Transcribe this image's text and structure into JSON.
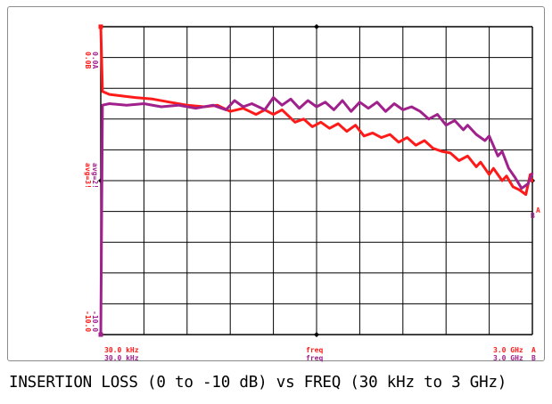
{
  "chart_data": {
    "type": "line",
    "title": "INSERTION LOSS (0 to -10 dB) vs FREQ (30 kHz to 3 GHz)",
    "xlabel": "freq",
    "ylabel_left": [
      "avg=3!",
      "avg=2!"
    ],
    "x_scale": "linear",
    "xlim_display": [
      0,
      1
    ],
    "ylim": [
      -10,
      0
    ],
    "grid": true,
    "x_tick_labels": {
      "start": [
        "30.0 kHz",
        "30.0 kHz"
      ],
      "center": [
        "freq",
        "freq"
      ],
      "stop": [
        "3.0 GHz",
        "3.0 GHz"
      ],
      "stop_markers": [
        "A",
        "B"
      ]
    },
    "y_tick_labels": {
      "top": [
        "0.0B",
        "0.0A"
      ],
      "bottom": [
        "-10.0",
        "-10.0"
      ]
    },
    "end_markers": [
      "A",
      "B"
    ],
    "series": [
      {
        "color": "#ff1a1a",
        "points": [
          [
            0.0,
            0.0
          ],
          [
            0.004,
            -2.1
          ],
          [
            0.02,
            -2.2
          ],
          [
            0.05,
            -2.25
          ],
          [
            0.08,
            -2.3
          ],
          [
            0.12,
            -2.35
          ],
          [
            0.16,
            -2.45
          ],
          [
            0.2,
            -2.55
          ],
          [
            0.24,
            -2.6
          ],
          [
            0.27,
            -2.55
          ],
          [
            0.3,
            -2.75
          ],
          [
            0.33,
            -2.65
          ],
          [
            0.36,
            -2.85
          ],
          [
            0.38,
            -2.7
          ],
          [
            0.4,
            -2.85
          ],
          [
            0.42,
            -2.7
          ],
          [
            0.45,
            -3.1
          ],
          [
            0.47,
            -3.0
          ],
          [
            0.49,
            -3.25
          ],
          [
            0.51,
            -3.1
          ],
          [
            0.53,
            -3.3
          ],
          [
            0.55,
            -3.15
          ],
          [
            0.57,
            -3.4
          ],
          [
            0.59,
            -3.2
          ],
          [
            0.61,
            -3.55
          ],
          [
            0.63,
            -3.45
          ],
          [
            0.65,
            -3.6
          ],
          [
            0.67,
            -3.5
          ],
          [
            0.69,
            -3.75
          ],
          [
            0.71,
            -3.6
          ],
          [
            0.73,
            -3.85
          ],
          [
            0.75,
            -3.7
          ],
          [
            0.77,
            -3.95
          ],
          [
            0.79,
            -4.05
          ],
          [
            0.81,
            -4.1
          ],
          [
            0.83,
            -4.35
          ],
          [
            0.85,
            -4.2
          ],
          [
            0.87,
            -4.55
          ],
          [
            0.88,
            -4.4
          ],
          [
            0.9,
            -4.8
          ],
          [
            0.91,
            -4.6
          ],
          [
            0.93,
            -5.0
          ],
          [
            0.94,
            -4.85
          ],
          [
            0.955,
            -5.2
          ],
          [
            0.97,
            -5.3
          ],
          [
            0.985,
            -5.45
          ],
          [
            0.995,
            -4.8
          ],
          [
            1.0,
            -5.05
          ]
        ]
      },
      {
        "color": "#a0208c",
        "points": [
          [
            0.0,
            -10.0
          ],
          [
            0.004,
            -2.55
          ],
          [
            0.02,
            -2.5
          ],
          [
            0.06,
            -2.55
          ],
          [
            0.1,
            -2.5
          ],
          [
            0.14,
            -2.6
          ],
          [
            0.18,
            -2.55
          ],
          [
            0.22,
            -2.65
          ],
          [
            0.26,
            -2.55
          ],
          [
            0.29,
            -2.7
          ],
          [
            0.31,
            -2.4
          ],
          [
            0.33,
            -2.6
          ],
          [
            0.35,
            -2.5
          ],
          [
            0.38,
            -2.7
          ],
          [
            0.4,
            -2.3
          ],
          [
            0.42,
            -2.55
          ],
          [
            0.44,
            -2.35
          ],
          [
            0.46,
            -2.65
          ],
          [
            0.48,
            -2.4
          ],
          [
            0.5,
            -2.6
          ],
          [
            0.52,
            -2.45
          ],
          [
            0.54,
            -2.7
          ],
          [
            0.56,
            -2.4
          ],
          [
            0.58,
            -2.75
          ],
          [
            0.6,
            -2.45
          ],
          [
            0.62,
            -2.65
          ],
          [
            0.64,
            -2.45
          ],
          [
            0.66,
            -2.75
          ],
          [
            0.68,
            -2.5
          ],
          [
            0.7,
            -2.7
          ],
          [
            0.72,
            -2.6
          ],
          [
            0.74,
            -2.75
          ],
          [
            0.76,
            -3.0
          ],
          [
            0.78,
            -2.85
          ],
          [
            0.8,
            -3.2
          ],
          [
            0.82,
            -3.05
          ],
          [
            0.84,
            -3.35
          ],
          [
            0.85,
            -3.2
          ],
          [
            0.87,
            -3.5
          ],
          [
            0.89,
            -3.7
          ],
          [
            0.9,
            -3.55
          ],
          [
            0.92,
            -4.2
          ],
          [
            0.93,
            -4.05
          ],
          [
            0.945,
            -4.6
          ],
          [
            0.96,
            -4.9
          ],
          [
            0.975,
            -5.25
          ],
          [
            0.99,
            -5.1
          ],
          [
            1.0,
            -4.75
          ]
        ]
      }
    ]
  }
}
